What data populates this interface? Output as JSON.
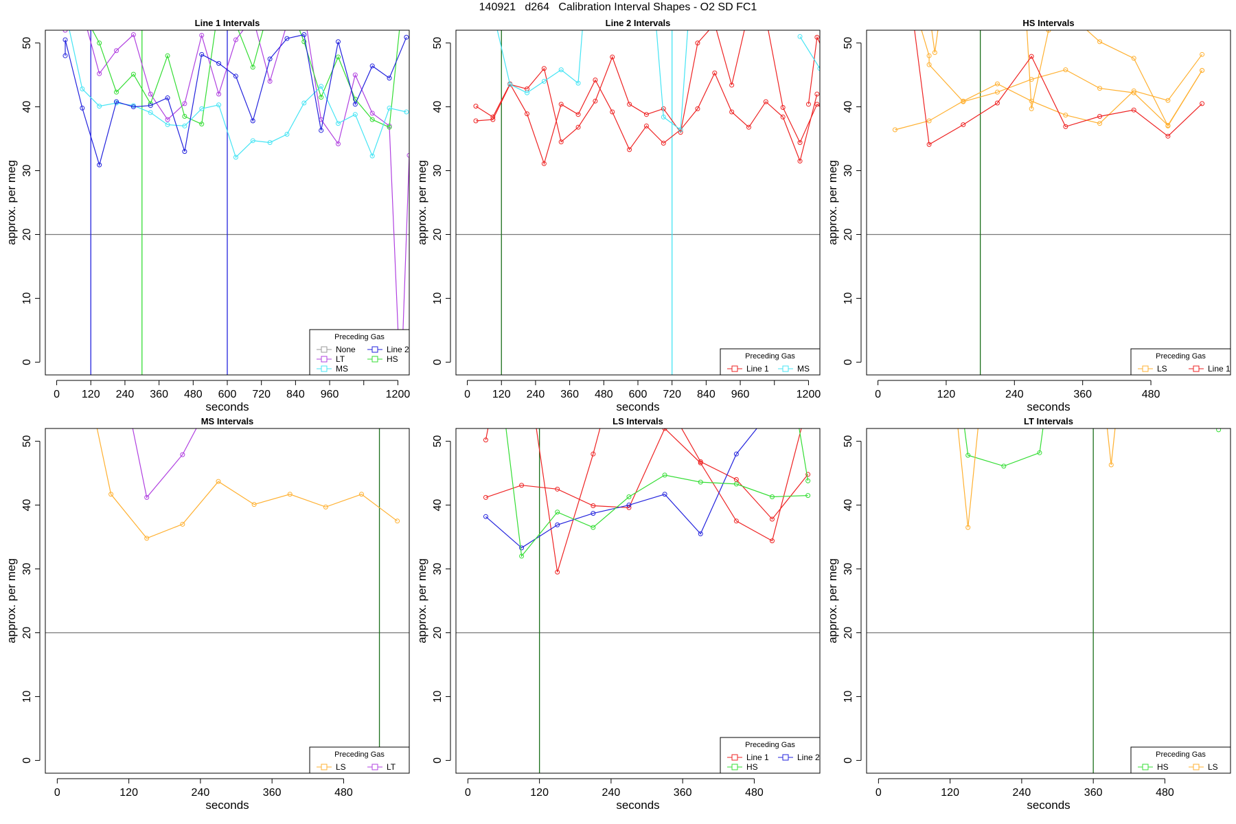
{
  "title": "140921   d264   Calibration Interval Shapes - O2 SD FC1",
  "colors": {
    "None": "#999999",
    "Line 1": "#ee2222",
    "Line 2": "#2222dd",
    "LT": "#b040e0",
    "MS": "#44e4f4",
    "HS": "#33dd33",
    "LS": "#ffb030",
    "vline_dark": "#1a6e1a",
    "hline": "#777777"
  },
  "chart_data": [
    {
      "type": "line",
      "title": "Line 1 Intervals",
      "xlabel": "seconds",
      "ylabel": "approx. per meg",
      "xlim": [
        -40,
        1240
      ],
      "ylim": [
        -2,
        52
      ],
      "xticks": [
        0,
        120,
        240,
        360,
        480,
        600,
        720,
        840,
        960,
        1080,
        1200
      ],
      "xtick_labels": [
        "0",
        "120",
        "240",
        "360",
        "480",
        "600",
        "720",
        "840",
        "960",
        "",
        "1200"
      ],
      "yticks": [
        0,
        10,
        20,
        30,
        40,
        50
      ],
      "hline": 20,
      "vlines": [
        {
          "x": 120,
          "color": "Line 2"
        },
        {
          "x": 300,
          "color": "HS"
        },
        {
          "x": 600,
          "color": "Line 2"
        }
      ],
      "legend": {
        "title": "Preceding Gas",
        "position": "bottom-right",
        "items": [
          "None",
          "Line 2",
          "LT",
          "HS",
          "MS"
        ],
        "columns": 2
      },
      "series": [
        {
          "name": "LT",
          "x": [
            30,
            90,
            150,
            210,
            270,
            330,
            390,
            450,
            510,
            570,
            630,
            690,
            750,
            810,
            870,
            930,
            990,
            1050,
            1110,
            1170,
            1210,
            1240
          ],
          "y": [
            52,
            55,
            45.2,
            48.8,
            51.3,
            42,
            38,
            40.5,
            51.2,
            42,
            50.5,
            54,
            44,
            53,
            55,
            38,
            34.2,
            45,
            39,
            37,
            -5,
            32.4
          ]
        },
        {
          "name": "HS",
          "x": [
            30,
            90,
            150,
            210,
            270,
            330,
            390,
            450,
            510,
            570,
            630,
            690,
            750,
            810,
            870,
            930,
            990,
            1050,
            1110,
            1170,
            1210
          ],
          "y": [
            53,
            55,
            50,
            42.3,
            45.1,
            40.5,
            48,
            38.5,
            37.3,
            56,
            53,
            46.2,
            56,
            57,
            50.2,
            41.5,
            47.8,
            41.2,
            38,
            36.8,
            54
          ]
        },
        {
          "name": "MS",
          "x": [
            30,
            90,
            150,
            210,
            270,
            330,
            390,
            450,
            510,
            570,
            630,
            690,
            750,
            810,
            870,
            930,
            990,
            1050,
            1110,
            1170,
            1230
          ],
          "y": [
            55,
            42.8,
            40.1,
            40.6,
            40.2,
            39.1,
            37.2,
            37,
            39.7,
            40.3,
            32.1,
            34.7,
            34.4,
            35.7,
            40.6,
            43.2,
            37.4,
            38.8,
            32.3,
            39.8,
            39.2
          ]
        },
        {
          "name": "Line 2",
          "x": [
            30,
            30,
            90,
            150,
            210,
            270,
            330,
            390,
            450,
            510,
            570,
            630,
            690,
            750,
            810,
            870,
            930,
            990,
            1050,
            1110,
            1170,
            1230
          ],
          "y": [
            48,
            50.5,
            39.8,
            30.9,
            40.8,
            40,
            40.2,
            41.4,
            33,
            48.2,
            46.8,
            44.8,
            37.8,
            47.5,
            50.7,
            51.3,
            36.3,
            50.2,
            40.4,
            46.4,
            44.5,
            50.9
          ]
        }
      ]
    },
    {
      "type": "line",
      "title": "Line 2 Intervals",
      "xlabel": "seconds",
      "ylabel": "approx. per meg",
      "xlim": [
        -40,
        1240
      ],
      "ylim": [
        -2,
        52
      ],
      "xticks": [
        0,
        120,
        240,
        360,
        480,
        600,
        720,
        840,
        960,
        1080,
        1200
      ],
      "xtick_labels": [
        "0",
        "120",
        "240",
        "360",
        "480",
        "600",
        "720",
        "840",
        "960",
        "",
        "1200"
      ],
      "yticks": [
        0,
        10,
        20,
        30,
        40,
        50
      ],
      "hline": 20,
      "vlines": [
        {
          "x": 120,
          "color": "vline_dark"
        },
        {
          "x": 720,
          "color": "MS"
        }
      ],
      "legend": {
        "title": "Preceding Gas",
        "position": "bottom-right",
        "items": [
          "Line 1",
          "MS"
        ],
        "columns": 2
      },
      "series": [
        {
          "name": "Line 1",
          "x": [
            30,
            90,
            150,
            210,
            270,
            330,
            390,
            450,
            510,
            570,
            630,
            690,
            750,
            810,
            870,
            930,
            990,
            1050,
            1110,
            1170,
            1230
          ],
          "y": [
            40.1,
            38.4,
            43.6,
            38.9,
            31.1,
            40.4,
            38.8,
            44.2,
            39.2,
            33.3,
            37,
            34.3,
            36.4,
            39.7,
            45.3,
            39.2,
            36.8,
            40.8,
            38.4,
            31.5,
            42
          ]
        },
        {
          "name": "Line 1",
          "x": [
            30,
            90,
            150,
            210,
            270,
            330,
            390,
            450,
            510,
            570,
            630,
            690,
            750,
            810,
            870,
            930,
            990,
            1050,
            1110,
            1170,
            1230,
            1250
          ],
          "y": [
            37.8,
            38,
            43.5,
            42.8,
            46,
            34.5,
            36.8,
            40.9,
            47.8,
            40.4,
            38.8,
            39.7,
            36,
            50,
            53,
            43.4,
            55,
            54,
            39.9,
            34.4,
            40.4,
            39.7
          ]
        },
        {
          "name": "Line 1",
          "x": [
            1200,
            1230,
            1250
          ],
          "y": [
            40.4,
            50.9,
            49
          ]
        },
        {
          "name": "MS",
          "x": [
            90,
            150,
            210,
            270,
            330,
            390,
            410
          ],
          "y": [
            55,
            43.5,
            42.2,
            44,
            45.8,
            43.7,
            55
          ]
        },
        {
          "name": "MS",
          "x": [
            660,
            690,
            750,
            780
          ],
          "y": [
            55,
            38.4,
            36.4,
            55
          ]
        },
        {
          "name": "MS",
          "x": [
            1170,
            1240
          ],
          "y": [
            51,
            46
          ]
        }
      ]
    },
    {
      "type": "line",
      "title": "HS Intervals",
      "xlabel": "seconds",
      "ylabel": "approx. per meg",
      "xlim": [
        -20,
        620
      ],
      "ylim": [
        -2,
        52
      ],
      "xticks": [
        0,
        120,
        240,
        360,
        480
      ],
      "xtick_labels": [
        "0",
        "120",
        "240",
        "360",
        "480"
      ],
      "yticks": [
        0,
        10,
        20,
        30,
        40,
        50
      ],
      "hline": 20,
      "vlines": [
        {
          "x": 180,
          "color": "vline_dark"
        }
      ],
      "legend": {
        "title": "Preceding Gas",
        "position": "bottom-right",
        "items": [
          "LS",
          "Line 1"
        ],
        "columns": 2
      },
      "series": [
        {
          "name": "LS",
          "x": [
            30,
            90,
            150,
            210,
            270,
            330,
            390,
            450,
            510,
            570
          ],
          "y": [
            36.4,
            37.8,
            40.9,
            43.6,
            40.9,
            38.7,
            37.4,
            42.5,
            41,
            48.2
          ]
        },
        {
          "name": "LS",
          "x": [
            70,
            90,
            90,
            150,
            210,
            270,
            330,
            390,
            450,
            510,
            570
          ],
          "y": [
            54,
            48,
            46.6,
            40.8,
            42.3,
            44.3,
            45.8,
            42.9,
            42.2,
            37.1,
            45.7
          ]
        },
        {
          "name": "LS",
          "x": [
            90,
            100,
            110
          ],
          "y": [
            55,
            48.5,
            55
          ]
        },
        {
          "name": "LS",
          "x": [
            260,
            270,
            300,
            330,
            390,
            450,
            510,
            570
          ],
          "y": [
            55,
            39.7,
            52,
            55,
            50.2,
            47.6,
            37,
            45.7
          ]
        },
        {
          "name": "Line 1",
          "x": [
            60,
            90,
            150,
            210,
            270,
            330,
            390,
            450,
            510,
            570
          ],
          "y": [
            55,
            34.1,
            37.2,
            40.6,
            47.9,
            36.9,
            38.5,
            39.5,
            35.4,
            40.5
          ]
        }
      ]
    },
    {
      "type": "line",
      "title": "MS Intervals",
      "xlabel": "seconds",
      "ylabel": "approx. per meg",
      "xlim": [
        -20,
        590
      ],
      "ylim": [
        -2,
        52
      ],
      "xticks": [
        0,
        120,
        240,
        360,
        480
      ],
      "xtick_labels": [
        "0",
        "120",
        "240",
        "360",
        "480"
      ],
      "yticks": [
        0,
        10,
        20,
        30,
        40,
        50
      ],
      "hline": 20,
      "vlines": [
        {
          "x": 540,
          "color": "vline_dark"
        }
      ],
      "legend": {
        "title": "Preceding Gas",
        "position": "bottom-right",
        "items": [
          "LS",
          "LT"
        ],
        "columns": 2
      },
      "series": [
        {
          "name": "LS",
          "x": [
            60,
            90,
            150,
            210,
            270,
            330,
            390,
            450,
            510,
            570
          ],
          "y": [
            55,
            41.7,
            34.8,
            37,
            43.7,
            40.1,
            41.7,
            39.7,
            41.7,
            37.5
          ]
        },
        {
          "name": "LT",
          "x": [
            120,
            150,
            210,
            250
          ],
          "y": [
            55,
            41.2,
            47.9,
            55
          ]
        }
      ]
    },
    {
      "type": "line",
      "title": "LS Intervals",
      "xlabel": "seconds",
      "ylabel": "approx. per meg",
      "xlim": [
        -20,
        590
      ],
      "ylim": [
        -2,
        52
      ],
      "xticks": [
        0,
        120,
        240,
        360,
        480
      ],
      "xtick_labels": [
        "0",
        "120",
        "240",
        "360",
        "480"
      ],
      "yticks": [
        0,
        10,
        20,
        30,
        40,
        50
      ],
      "hline": 20,
      "vlines": [
        {
          "x": 120,
          "color": "vline_dark"
        }
      ],
      "legend": {
        "title": "Preceding Gas",
        "position": "bottom-right",
        "items": [
          "Line 1",
          "Line 2",
          "HS"
        ],
        "columns": 2
      },
      "series": [
        {
          "name": "Line 1",
          "x": [
            30,
            90,
            150,
            210,
            270,
            330,
            390,
            450,
            510,
            570
          ],
          "y": [
            41.2,
            43.1,
            42.5,
            39.9,
            39.6,
            52,
            46.6,
            37.5,
            34.4,
            56
          ]
        },
        {
          "name": "Line 1",
          "x": [
            30,
            40
          ],
          "y": [
            50.2,
            55
          ]
        },
        {
          "name": "Line 1",
          "x": [
            110,
            150,
            210,
            230
          ],
          "y": [
            55,
            29.5,
            48,
            55
          ]
        },
        {
          "name": "Line 1",
          "x": [
            340,
            390,
            450,
            510,
            570
          ],
          "y": [
            55,
            46.8,
            44,
            37.8,
            44.8
          ]
        },
        {
          "name": "Line 2",
          "x": [
            30,
            90,
            150,
            210,
            270,
            330,
            390,
            450,
            510
          ],
          "y": [
            38.2,
            33.3,
            36.9,
            38.7,
            40,
            41.7,
            35.5,
            48,
            55
          ]
        },
        {
          "name": "HS",
          "x": [
            60,
            90,
            150,
            210,
            270,
            330,
            390,
            450,
            510,
            570
          ],
          "y": [
            55,
            32,
            38.9,
            36.5,
            41.3,
            44.7,
            43.6,
            43.3,
            41.3,
            41.5
          ]
        },
        {
          "name": "HS",
          "x": [
            550,
            570
          ],
          "y": [
            55,
            43.8
          ]
        }
      ]
    },
    {
      "type": "line",
      "title": "LT Intervals",
      "xlabel": "seconds",
      "ylabel": "approx. per meg",
      "xlim": [
        -20,
        590
      ],
      "ylim": [
        -2,
        52
      ],
      "xticks": [
        0,
        120,
        240,
        360,
        480
      ],
      "xtick_labels": [
        "0",
        "120",
        "240",
        "360",
        "480"
      ],
      "yticks": [
        0,
        10,
        20,
        30,
        40,
        50
      ],
      "hline": 20,
      "vlines": [
        {
          "x": 360,
          "color": "vline_dark"
        }
      ],
      "legend": {
        "title": "Preceding Gas",
        "position": "bottom-right",
        "items": [
          "HS",
          "LS"
        ],
        "columns": 2
      },
      "series": [
        {
          "name": "HS",
          "x": [
            140,
            150,
            210,
            270,
            280
          ],
          "y": [
            55,
            47.8,
            46.1,
            48.2,
            55
          ]
        },
        {
          "name": "HS",
          "x": [
            570
          ],
          "y": [
            51.8
          ]
        },
        {
          "name": "LS",
          "x": [
            130,
            150,
            170
          ],
          "y": [
            55,
            36.5,
            55
          ]
        },
        {
          "name": "LS",
          "x": [
            380,
            390,
            400
          ],
          "y": [
            55,
            46.3,
            55
          ]
        }
      ]
    }
  ]
}
